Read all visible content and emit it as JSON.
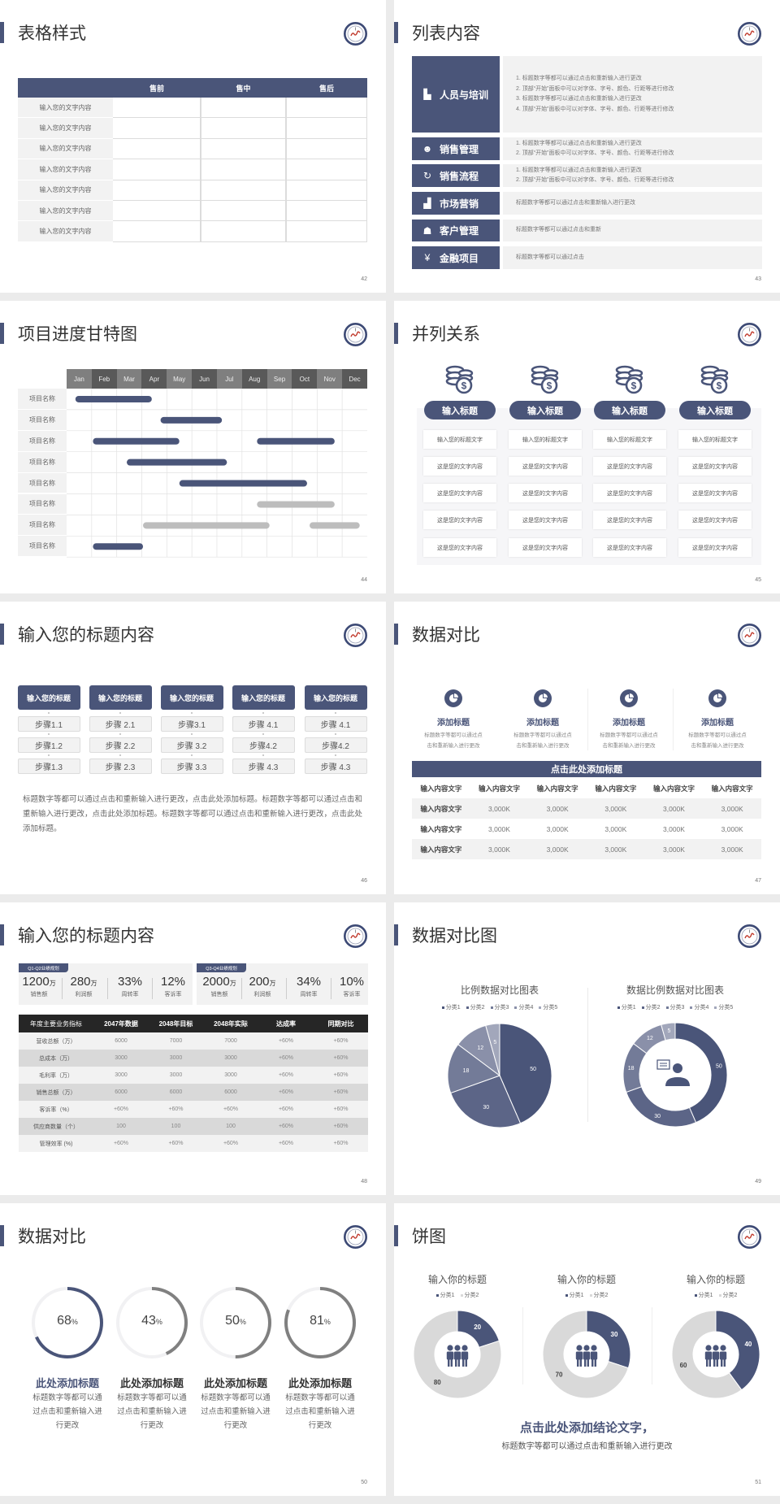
{
  "colors": {
    "navy": "#4a5579",
    "gray": "#808080",
    "light_gray": "#d9d9d9",
    "panel": "#f2f2f2",
    "dark_header": "#262626"
  },
  "slides": [
    {
      "page": "42",
      "title": "表格样式",
      "table": {
        "headers": [
          "",
          "售前",
          "售中",
          "售后"
        ],
        "rows": [
          "输入您的文字内容",
          "输入您的文字内容",
          "输入您的文字内容",
          "输入您的文字内容",
          "输入您的文字内容",
          "输入您的文字内容",
          "输入您的文字内容"
        ]
      }
    },
    {
      "page": "43",
      "title": "列表内容",
      "items": [
        {
          "icon": "people-training-icon",
          "label": "人员与培训",
          "lines": [
            "1.   标题数字等都可以通过点击和重新输入进行更改",
            "2.   顶部“开始”面板中可以对字体、字号、颜色、行距等进行修改",
            "3.   标题数字等都可以通过点击和重新输入进行更改",
            "4.   顶部“开始”面板中可以对字体、字号、颜色、行距等进行修改"
          ]
        },
        {
          "icon": "sales-management-icon",
          "label": "销售管理",
          "lines": [
            "1.   标题数字等都可以通过点击和重新输入进行更改",
            "2.   顶部“开始”面板中可以对字体、字号、颜色、行距等进行修改"
          ]
        },
        {
          "icon": "sales-process-icon",
          "label": "销售流程",
          "lines": [
            "1.   标题数字等都可以通过点击和重新输入进行更改",
            "2.   顶部“开始”面板中可以对字体、字号、颜色、行距等进行修改"
          ]
        },
        {
          "icon": "bar-chart-icon",
          "label": "市场营销",
          "lines": [
            "标题数字等都可以通过点击和重新输入进行更改"
          ]
        },
        {
          "icon": "customers-icon",
          "label": "客户管理",
          "lines": [
            "标题数字等都可以通过点击和重新"
          ]
        },
        {
          "icon": "finance-hand-icon",
          "label": "金融项目",
          "lines": [
            "标题数字等都可以通过点击"
          ]
        }
      ]
    },
    {
      "page": "44",
      "title": "项目进度甘特图",
      "gantt": {
        "months": [
          "Jan",
          "Feb",
          "Mar",
          "Apr",
          "May",
          "Jun",
          "Jul",
          "Aug",
          "Sep",
          "Oct",
          "Nov",
          "Dec"
        ],
        "rows": [
          {
            "label": "项目名称",
            "bars": [
              {
                "start": 0.35,
                "end": 3.4,
                "status": "active"
              }
            ]
          },
          {
            "label": "项目名称",
            "bars": [
              {
                "start": 3.75,
                "end": 6.2,
                "status": "active"
              }
            ]
          },
          {
            "label": "项目名称",
            "bars": [
              {
                "start": 1.05,
                "end": 4.5,
                "status": "active"
              },
              {
                "start": 7.6,
                "end": 10.7,
                "status": "active"
              }
            ]
          },
          {
            "label": "项目名称",
            "bars": [
              {
                "start": 2.4,
                "end": 6.4,
                "status": "active"
              }
            ]
          },
          {
            "label": "项目名称",
            "bars": [
              {
                "start": 4.5,
                "end": 9.6,
                "status": "active"
              }
            ]
          },
          {
            "label": "项目名称",
            "bars": [
              {
                "start": 7.6,
                "end": 10.7,
                "status": "planned"
              }
            ]
          },
          {
            "label": "项目名称",
            "bars": [
              {
                "start": 3.05,
                "end": 8.1,
                "status": "planned"
              },
              {
                "start": 9.7,
                "end": 11.7,
                "status": "planned"
              }
            ]
          },
          {
            "label": "项目名称",
            "bars": [
              {
                "start": 1.05,
                "end": 3.05,
                "status": "active"
              }
            ]
          }
        ]
      }
    },
    {
      "page": "45",
      "title": "并列关系",
      "columns": [
        {
          "icon": "coins-dollar-icon",
          "heading": "输入标题",
          "items": [
            "输入您的标题文字",
            "这是您的文字内容",
            "这是您的文字内容",
            "这是您的文字内容",
            "这是您的文字内容"
          ]
        },
        {
          "icon": "coins-dollar-icon",
          "heading": "输入标题",
          "items": [
            "输入您的标题文字",
            "这是您的文字内容",
            "这是您的文字内容",
            "这是您的文字内容",
            "这是您的文字内容"
          ]
        },
        {
          "icon": "coins-dollar-icon",
          "heading": "输入标题",
          "items": [
            "输入您的标题文字",
            "这是您的文字内容",
            "这是您的文字内容",
            "这是您的文字内容",
            "这是您的文字内容"
          ]
        },
        {
          "icon": "coins-dollar-icon",
          "heading": "输入标题",
          "items": [
            "输入您的标题文字",
            "这是您的文字内容",
            "这是您的文字内容",
            "这是您的文字内容",
            "这是您的文字内容"
          ]
        }
      ]
    },
    {
      "page": "46",
      "title": "输入您的标题内容",
      "columns": [
        {
          "heading": "输入您的标题",
          "steps": [
            "步骤1.1",
            "步骤1.2",
            "步骤1.3"
          ]
        },
        {
          "heading": "输入您的标题",
          "steps": [
            "步骤 2.1",
            "步骤 2.2",
            "步骤 2.3"
          ]
        },
        {
          "heading": "输入您的标题",
          "steps": [
            "步骤3.1",
            "步骤 3.2",
            "步骤 3.3"
          ]
        },
        {
          "heading": "输入您的标题",
          "steps": [
            "步骤 4.1",
            "步骤4.2",
            "步骤 4.3"
          ]
        },
        {
          "heading": "输入您的标题",
          "steps": [
            "步骤 4.1",
            "步骤4.2",
            "步骤 4.3"
          ]
        }
      ],
      "paragraph": "标题数字等都可以通过点击和重新输入进行更改，点击此处添加标题。标题数字等都可以通过点击和重新输入进行更改，点击此处添加标题。标题数字等都可以通过点击和重新输入进行更改，点击此处添加标题。"
    },
    {
      "page": "47",
      "title": "数据对比",
      "features": [
        {
          "icon": "pie-chart-icon",
          "title": "添加标题",
          "desc_lines": [
            "标题数字等都可以通过点",
            "击和重新输入进行更改"
          ]
        },
        {
          "icon": "pie-chart-icon",
          "title": "添加标题",
          "desc_lines": [
            "标题数字等都可以通过点",
            "击和重新输入进行更改"
          ]
        },
        {
          "icon": "pie-chart-icon",
          "title": "添加标题",
          "desc_lines": [
            "标题数字等都可以通过点",
            "击和重新输入进行更改"
          ]
        },
        {
          "icon": "pie-chart-icon",
          "title": "添加标题",
          "desc_lines": [
            "标题数字等都可以通过点",
            "击和重新输入进行更改"
          ]
        }
      ],
      "table_title": "点击此处添加标题",
      "headers": [
        "输入内容文字",
        "输入内容文字",
        "输入内容文字",
        "输入内容文字",
        "输入内容文字",
        "输入内容文字"
      ],
      "rows": [
        [
          "输入内容文字",
          "3,000K",
          "3,000K",
          "3,000K",
          "3,000K",
          "3,000K"
        ],
        [
          "输入内容文字",
          "3,000K",
          "3,000K",
          "3,000K",
          "3,000K",
          "3,000K"
        ],
        [
          "输入内容文字",
          "3,000K",
          "3,000K",
          "3,000K",
          "3,000K",
          "3,000K"
        ]
      ]
    },
    {
      "page": "48",
      "title": "输入您的标题内容",
      "panels": [
        {
          "tag": "Q1-Q2业绩规划",
          "kpis": [
            {
              "value": "1200",
              "unit": "万",
              "label": "销售额"
            },
            {
              "value": "280",
              "unit": "万",
              "label": "利润额"
            },
            {
              "value": "33%",
              "unit": "",
              "label": "周转率"
            },
            {
              "value": "12%",
              "unit": "",
              "label": "客诉率"
            }
          ]
        },
        {
          "tag": "Q3-Q4业绩规划",
          "kpis": [
            {
              "value": "2000",
              "unit": "万",
              "label": "销售额"
            },
            {
              "value": "200",
              "unit": "万",
              "label": "利润额"
            },
            {
              "value": "34%",
              "unit": "",
              "label": "周转率"
            },
            {
              "value": "10%",
              "unit": "",
              "label": "客诉率"
            }
          ]
        }
      ],
      "table": {
        "headers": [
          "年度主要业务指标",
          "2047年数据",
          "2048年目标",
          "2048年实际",
          "达成率",
          "同期对比"
        ],
        "rows": [
          [
            "营收总额（万）",
            "6000",
            "7000",
            "7000",
            "+60%",
            "+60%"
          ],
          [
            "总成本（万）",
            "3000",
            "3000",
            "3000",
            "+60%",
            "+60%"
          ],
          [
            "毛利率（万）",
            "3000",
            "3000",
            "3000",
            "+60%",
            "+60%"
          ],
          [
            "销售总额（万）",
            "6000",
            "6000",
            "6000",
            "+60%",
            "+60%"
          ],
          [
            "客诉率（%）",
            "+60%",
            "+60%",
            "+60%",
            "+60%",
            "+60%"
          ],
          [
            "供应商数量（个）",
            "100",
            "100",
            "100",
            "+60%",
            "+60%"
          ],
          [
            "管理效率 (%)",
            "+60%",
            "+60%",
            "+60%",
            "+60%",
            "+60%"
          ]
        ]
      }
    },
    {
      "page": "49",
      "title": "数据对比图"
    },
    {
      "page": "50",
      "title": "数据对比",
      "rings": [
        {
          "value": 68,
          "unit": "%",
          "title": "此处添加标题",
          "desc_lines": [
            "标题数字等都可以通",
            "过点击和重新输入进",
            "行更改"
          ]
        },
        {
          "value": 43,
          "unit": "%",
          "title": "此处添加标题",
          "desc_lines": [
            "标题数字等都可以通",
            "过点击和重新输入进",
            "行更改"
          ]
        },
        {
          "value": 50,
          "unit": "%",
          "title": "此处添加标题",
          "desc_lines": [
            "标题数字等都可以通",
            "过点击和重新输入进",
            "行更改"
          ]
        },
        {
          "value": 81,
          "unit": "%",
          "title": "此处添加标题",
          "desc_lines": [
            "标题数字等都可以通",
            "过点击和重新输入进",
            "行更改"
          ]
        }
      ]
    },
    {
      "page": "51",
      "title": "饼图",
      "conclusion": "点击此处添加结论文字，",
      "sub": "标题数字等都可以通过点击和重新输入进行更改"
    }
  ],
  "chart_data": [
    {
      "type": "pie",
      "title": "比例数据对比图表",
      "categories": [
        "分类1",
        "分类2",
        "分类3",
        "分类4",
        "分类5"
      ],
      "values": [
        50,
        30,
        18,
        12,
        5
      ],
      "colors": [
        "#4a5579",
        "#5c6587",
        "#737b98",
        "#8a90a9",
        "#a2a7bb"
      ],
      "legend": "top"
    },
    {
      "type": "pie",
      "variant": "donut",
      "title": "数据比例数据对比图表",
      "categories": [
        "分类1",
        "分类2",
        "分类3",
        "分类4",
        "分类5"
      ],
      "values": [
        50,
        30,
        18,
        12,
        5
      ],
      "colors": [
        "#4a5579",
        "#5c6587",
        "#737b98",
        "#8a90a9",
        "#a2a7bb"
      ],
      "legend": "top",
      "center_icon": "customer-service-icon"
    },
    {
      "type": "pie",
      "variant": "donut",
      "title": "输入你的标题",
      "categories": [
        "分类1",
        "分类2"
      ],
      "values": [
        20,
        80
      ],
      "colors": [
        "#4a5579",
        "#d9d9d9"
      ],
      "legend": "top",
      "center_icon": "team-icon"
    },
    {
      "type": "pie",
      "variant": "donut",
      "title": "输入你的标题",
      "categories": [
        "分类1",
        "分类2"
      ],
      "values": [
        30,
        70
      ],
      "colors": [
        "#4a5579",
        "#d9d9d9"
      ],
      "legend": "top",
      "center_icon": "team-icon"
    },
    {
      "type": "pie",
      "variant": "donut",
      "title": "输入你的标题",
      "categories": [
        "分类1",
        "分类2"
      ],
      "values": [
        40,
        60
      ],
      "colors": [
        "#4a5579",
        "#d9d9d9"
      ],
      "legend": "top",
      "center_icon": "team-icon"
    }
  ]
}
